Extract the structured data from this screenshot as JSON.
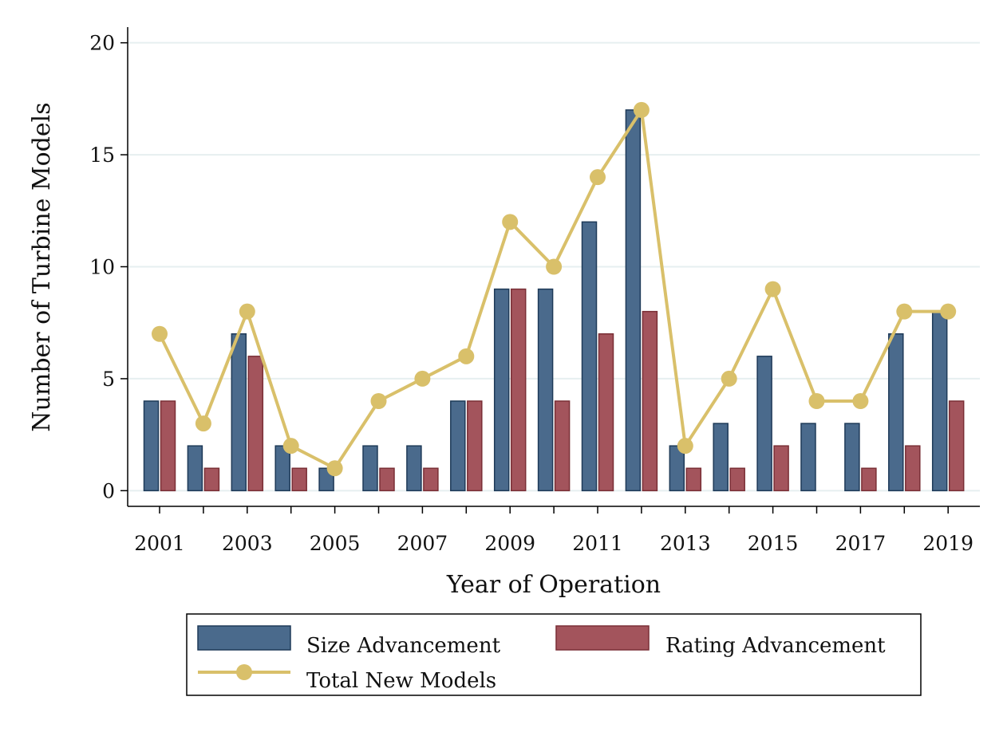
{
  "chart_data": {
    "type": "bar",
    "title": "",
    "xlabel": "Year of Operation",
    "ylabel": "Number of Turbine Models",
    "categories": [
      "2001",
      "2002",
      "2003",
      "2004",
      "2005",
      "2006",
      "2007",
      "2008",
      "2009",
      "2010",
      "2011",
      "2012",
      "2013",
      "2014",
      "2015",
      "2016",
      "2017",
      "2018",
      "2019"
    ],
    "x_tick_labels": [
      "2001",
      "2003",
      "2005",
      "2007",
      "2009",
      "2011",
      "2013",
      "2015",
      "2017",
      "2019"
    ],
    "y_ticks": [
      0,
      5,
      10,
      15,
      20
    ],
    "ylim": [
      -0.7,
      20.7
    ],
    "grid": true,
    "legend_position": "bottom",
    "series": [
      {
        "name": "Size Advancement",
        "type": "bar",
        "color": "#4a6a8c",
        "edge_color": "#1e3a58",
        "values": [
          4,
          2,
          7,
          2,
          1,
          2,
          2,
          4,
          9,
          9,
          12,
          17,
          2,
          3,
          6,
          3,
          3,
          7,
          8
        ]
      },
      {
        "name": "Rating Advancement",
        "type": "bar",
        "color": "#a3545c",
        "edge_color": "#7a2f36",
        "values": [
          4,
          1,
          6,
          1,
          0,
          1,
          1,
          4,
          9,
          4,
          7,
          8,
          1,
          1,
          2,
          0,
          1,
          2,
          4
        ]
      },
      {
        "name": "Total New Models",
        "type": "line",
        "color": "#d9c06a",
        "values": [
          7,
          3,
          8,
          2,
          1,
          4,
          5,
          6,
          12,
          10,
          14,
          17,
          2,
          5,
          9,
          4,
          4,
          8,
          8
        ]
      }
    ]
  }
}
